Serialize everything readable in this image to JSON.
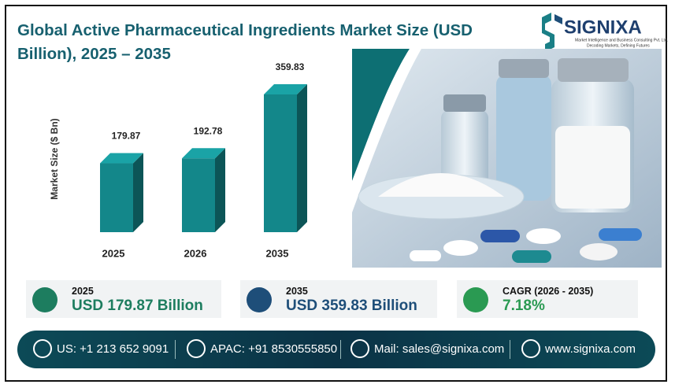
{
  "header": {
    "brand": "SIGNIXA",
    "tagline": "Market Intelligence and Business Consulting Pvt. Ltd.",
    "motto": "Decoding Markets, Defining Futures"
  },
  "chart_data": {
    "type": "bar",
    "title": "Global Active Pharmaceutical Ingredients Market Size (USD Billion), 2025 – 2035",
    "y_label": "Market Size ($ Bn)",
    "categories": [
      "2025",
      "2026",
      "2035"
    ],
    "values": [
      179.87,
      192.78,
      359.83
    ],
    "color": "#13878a"
  },
  "stats": [
    {
      "label": "2025",
      "value": "USD 179.87 Billion"
    },
    {
      "label": "2035",
      "value": "USD 359.83 Billion"
    },
    {
      "label": "CAGR (2026 - 2035)",
      "value": "7.18%"
    }
  ],
  "contacts": [
    "US: +1 213 652 9091",
    "APAC: +91 8530555850",
    "Mail: sales@signixa.com",
    "www.signixa.com"
  ]
}
